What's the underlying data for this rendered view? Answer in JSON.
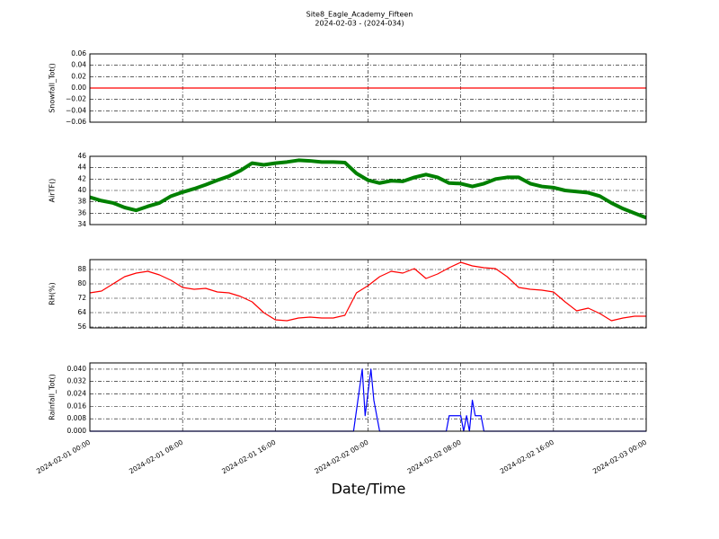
{
  "title": "Site8_Eagle_Academy_Fifteen",
  "subtitle": "2024-02-03 - (2024-034)",
  "xlabel": "Date/Time",
  "chart_data": [
    {
      "type": "line",
      "ylabel": "Snowfall_Tot()",
      "color": "#ff0000",
      "grid": true,
      "x": [
        "2024-02-01 00:00",
        "2024-02-03 00:00"
      ],
      "values": [
        0,
        0
      ],
      "xlim": [
        "2024-02-01 00:00",
        "2024-02-03 00:00"
      ],
      "xticks": [
        "2024-02-01 00:00",
        "2024-02-01 08:00",
        "2024-02-01 16:00",
        "2024-02-02 00:00",
        "2024-02-02 08:00",
        "2024-02-02 16:00",
        "2024-02-03 00:00"
      ],
      "ylim": [
        -0.06,
        0.06
      ],
      "yticks": [
        {
          "value": -0.06,
          "label": "−0.06"
        },
        {
          "value": -0.04,
          "label": "−0.04"
        },
        {
          "value": -0.02,
          "label": "−0.02"
        },
        {
          "value": 0,
          "label": "0.00"
        },
        {
          "value": 0.02,
          "label": "0.02"
        },
        {
          "value": 0.04,
          "label": "0.04"
        },
        {
          "value": 0.06,
          "label": "0.06"
        }
      ]
    },
    {
      "type": "line",
      "ylabel": "AirTF()",
      "color": "#008000",
      "grid": true,
      "x": [
        "2024-02-01 00:00",
        "2024-02-01 01:00",
        "2024-02-01 02:00",
        "2024-02-01 03:00",
        "2024-02-01 04:00",
        "2024-02-01 05:00",
        "2024-02-01 06:00",
        "2024-02-01 07:00",
        "2024-02-01 08:00",
        "2024-02-01 09:00",
        "2024-02-01 10:00",
        "2024-02-01 11:00",
        "2024-02-01 12:00",
        "2024-02-01 13:00",
        "2024-02-01 14:00",
        "2024-02-01 15:00",
        "2024-02-01 16:00",
        "2024-02-01 17:00",
        "2024-02-01 18:00",
        "2024-02-01 19:00",
        "2024-02-01 20:00",
        "2024-02-01 21:00",
        "2024-02-01 22:00",
        "2024-02-01 23:00",
        "2024-02-02 00:00",
        "2024-02-02 01:00",
        "2024-02-02 02:00",
        "2024-02-02 03:00",
        "2024-02-02 04:00",
        "2024-02-02 05:00",
        "2024-02-02 06:00",
        "2024-02-02 07:00",
        "2024-02-02 08:00",
        "2024-02-02 09:00",
        "2024-02-02 10:00",
        "2024-02-02 11:00",
        "2024-02-02 12:00",
        "2024-02-02 13:00",
        "2024-02-02 14:00",
        "2024-02-02 15:00",
        "2024-02-02 16:00",
        "2024-02-02 17:00",
        "2024-02-02 18:00",
        "2024-02-02 19:00",
        "2024-02-02 20:00",
        "2024-02-02 21:00",
        "2024-02-02 22:00",
        "2024-02-02 23:00",
        "2024-02-03 00:00"
      ],
      "values": [
        38.8,
        38.2,
        37.8,
        37.0,
        36.5,
        37.2,
        37.8,
        39.0,
        39.7,
        40.3,
        41.0,
        41.8,
        42.5,
        43.5,
        44.8,
        44.5,
        44.8,
        45.0,
        45.3,
        45.2,
        45.0,
        45.0,
        44.9,
        43.0,
        41.8,
        41.3,
        41.7,
        41.6,
        42.3,
        42.8,
        42.3,
        41.3,
        41.2,
        40.7,
        41.2,
        42.0,
        42.3,
        42.3,
        41.2,
        40.7,
        40.5,
        40.0,
        39.8,
        39.6,
        39.0,
        37.8,
        36.8,
        36.0,
        35.2
      ],
      "xlim": [
        "2024-02-01 00:00",
        "2024-02-03 00:00"
      ],
      "xticks": [
        "2024-02-01 00:00",
        "2024-02-01 08:00",
        "2024-02-01 16:00",
        "2024-02-02 00:00",
        "2024-02-02 08:00",
        "2024-02-02 16:00",
        "2024-02-03 00:00"
      ],
      "ylim": [
        34,
        46
      ],
      "yticks": [
        34,
        36,
        38,
        40,
        42,
        44,
        46
      ]
    },
    {
      "type": "line",
      "ylabel": "RH(%)",
      "color": "#ff0000",
      "grid": true,
      "x": [
        "2024-02-01 00:00",
        "2024-02-01 01:00",
        "2024-02-01 02:00",
        "2024-02-01 03:00",
        "2024-02-01 04:00",
        "2024-02-01 05:00",
        "2024-02-01 06:00",
        "2024-02-01 07:00",
        "2024-02-01 08:00",
        "2024-02-01 09:00",
        "2024-02-01 10:00",
        "2024-02-01 11:00",
        "2024-02-01 12:00",
        "2024-02-01 13:00",
        "2024-02-01 14:00",
        "2024-02-01 15:00",
        "2024-02-01 16:00",
        "2024-02-01 17:00",
        "2024-02-01 18:00",
        "2024-02-01 19:00",
        "2024-02-01 20:00",
        "2024-02-01 21:00",
        "2024-02-01 22:00",
        "2024-02-01 23:00",
        "2024-02-02 00:00",
        "2024-02-02 01:00",
        "2024-02-02 02:00",
        "2024-02-02 03:00",
        "2024-02-02 04:00",
        "2024-02-02 05:00",
        "2024-02-02 06:00",
        "2024-02-02 07:00",
        "2024-02-02 08:00",
        "2024-02-02 09:00",
        "2024-02-02 10:00",
        "2024-02-02 11:00",
        "2024-02-02 12:00",
        "2024-02-02 13:00",
        "2024-02-02 14:00",
        "2024-02-02 15:00",
        "2024-02-02 16:00",
        "2024-02-02 17:00",
        "2024-02-02 18:00",
        "2024-02-02 19:00",
        "2024-02-02 20:00",
        "2024-02-02 21:00",
        "2024-02-02 22:00",
        "2024-02-02 23:00",
        "2024-02-03 00:00"
      ],
      "values": [
        75,
        76,
        80,
        84,
        86,
        87,
        85,
        82,
        78,
        77,
        77.5,
        75.5,
        75,
        73,
        70,
        64,
        60,
        59.5,
        61,
        61.5,
        61,
        61,
        62.5,
        75,
        79,
        84,
        87,
        86,
        88.5,
        83,
        85.5,
        89,
        92,
        90,
        89,
        88.5,
        84,
        78,
        77,
        76.5,
        75.5,
        70,
        65,
        66.5,
        63.5,
        59.5,
        61,
        62,
        62
      ],
      "xlim": [
        "2024-02-01 00:00",
        "2024-02-03 00:00"
      ],
      "xticks": [
        "2024-02-01 00:00",
        "2024-02-01 08:00",
        "2024-02-01 16:00",
        "2024-02-02 00:00",
        "2024-02-02 08:00",
        "2024-02-02 16:00",
        "2024-02-03 00:00"
      ],
      "ylim": [
        55.5,
        93.5
      ],
      "yticks": [
        56,
        64,
        72,
        80,
        88
      ]
    },
    {
      "type": "line",
      "ylabel": "Rainfall_Tot()",
      "color": "#0000ff",
      "grid": true,
      "x": [
        "2024-02-01 00:00",
        "2024-02-01 22:45",
        "2024-02-01 23:30",
        "2024-02-01 23:45",
        "2024-02-02 00:15",
        "2024-02-02 00:30",
        "2024-02-02 01:00",
        "2024-02-02 06:45",
        "2024-02-02 07:00",
        "2024-02-02 08:00",
        "2024-02-02 08:15",
        "2024-02-02 08:30",
        "2024-02-02 08:45",
        "2024-02-02 09:00",
        "2024-02-02 09:15",
        "2024-02-02 09:45",
        "2024-02-02 10:00",
        "2024-02-03 00:00"
      ],
      "values": [
        0,
        0,
        0.04,
        0.01,
        0.04,
        0.02,
        0,
        0,
        0.01,
        0.01,
        0,
        0.01,
        0,
        0.02,
        0.01,
        0.01,
        0,
        0
      ],
      "xlim": [
        "2024-02-01 00:00",
        "2024-02-03 00:00"
      ],
      "xticks": [
        "2024-02-01 00:00",
        "2024-02-01 08:00",
        "2024-02-01 16:00",
        "2024-02-02 00:00",
        "2024-02-02 08:00",
        "2024-02-02 16:00",
        "2024-02-03 00:00"
      ],
      "ylim": [
        0,
        0.044
      ],
      "yticks": [
        {
          "value": 0,
          "label": "0.000"
        },
        {
          "value": 0.008,
          "label": "0.008"
        },
        {
          "value": 0.016,
          "label": "0.016"
        },
        {
          "value": 0.024,
          "label": "0.024"
        },
        {
          "value": 0.032,
          "label": "0.032"
        },
        {
          "value": 0.04,
          "label": "0.040"
        }
      ]
    }
  ]
}
